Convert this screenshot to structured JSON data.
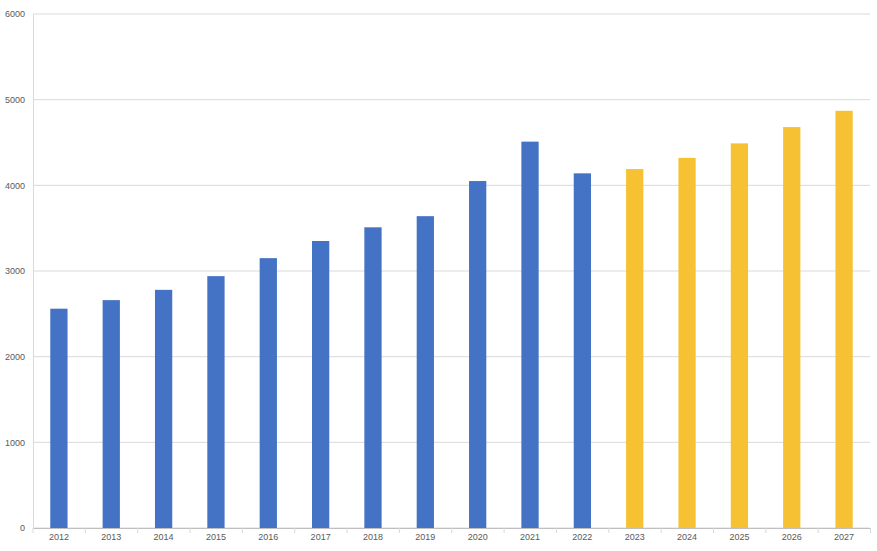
{
  "chart_data": {
    "type": "bar",
    "categories": [
      "2012",
      "2013",
      "2014",
      "2015",
      "2016",
      "2017",
      "2018",
      "2019",
      "2020",
      "2021",
      "2022",
      "2023",
      "2024",
      "2025",
      "2026",
      "2027"
    ],
    "values": [
      2560,
      2660,
      2780,
      2940,
      3150,
      3350,
      3510,
      3640,
      4050,
      4510,
      4140,
      4190,
      4320,
      4490,
      4680,
      4870
    ],
    "colors": [
      "#4472c4",
      "#4472c4",
      "#4472c4",
      "#4472c4",
      "#4472c4",
      "#4472c4",
      "#4472c4",
      "#4472c4",
      "#4472c4",
      "#4472c4",
      "#4472c4",
      "#f6c233",
      "#f6c233",
      "#f6c233",
      "#f6c233",
      "#f6c233"
    ],
    "ylim": [
      0,
      6000
    ],
    "yticks": [
      0,
      1000,
      2000,
      3000,
      4000,
      5000,
      6000
    ],
    "grid": true
  }
}
